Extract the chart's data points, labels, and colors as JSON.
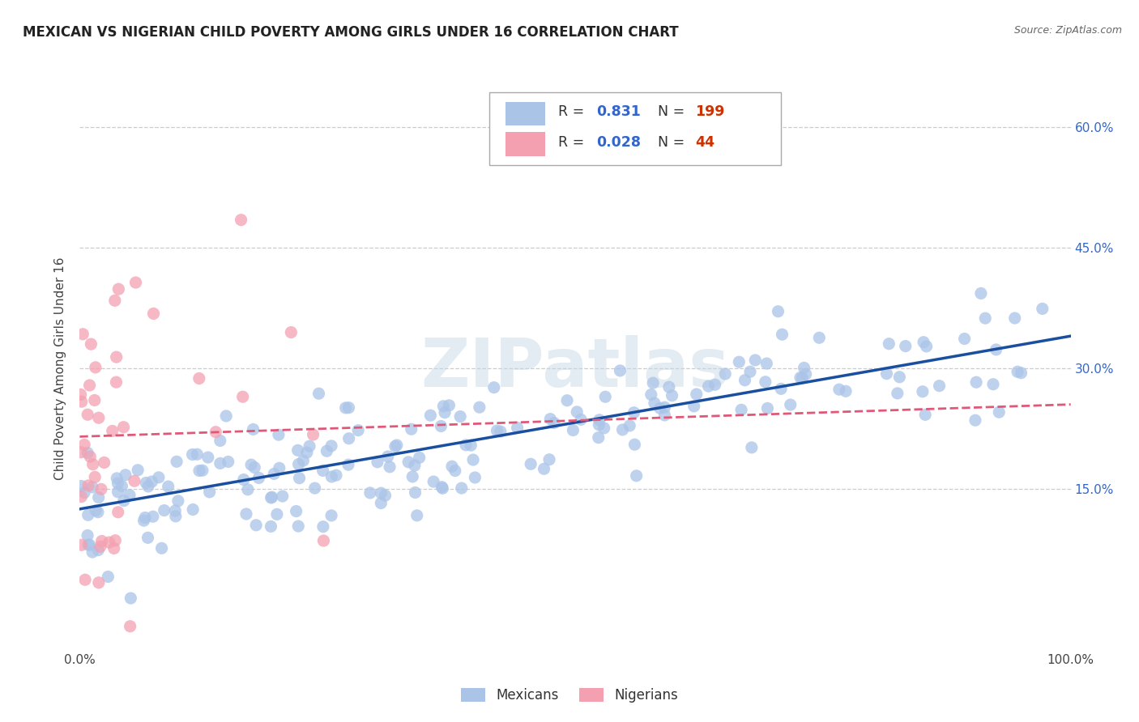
{
  "title": "MEXICAN VS NIGERIAN CHILD POVERTY AMONG GIRLS UNDER 16 CORRELATION CHART",
  "source": "Source: ZipAtlas.com",
  "ylabel": "Child Poverty Among Girls Under 16",
  "xlim": [
    0.0,
    1.0
  ],
  "ylim": [
    -0.05,
    0.65
  ],
  "x_ticks": [
    0.0,
    0.1,
    0.2,
    0.3,
    0.4,
    0.5,
    0.6,
    0.7,
    0.8,
    0.9,
    1.0
  ],
  "x_tick_labels": [
    "0.0%",
    "",
    "",
    "",
    "",
    "",
    "",
    "",
    "",
    "",
    "100.0%"
  ],
  "y_ticks": [
    0.15,
    0.3,
    0.45,
    0.6
  ],
  "y_tick_labels": [
    "15.0%",
    "30.0%",
    "45.0%",
    "60.0%"
  ],
  "watermark": "ZIPatlas",
  "legend_r_mexican": "0.831",
  "legend_n_mexican": "199",
  "legend_r_nigerian": "0.028",
  "legend_n_nigerian": "44",
  "mexican_color": "#aac4e8",
  "nigerian_color": "#f4a0b0",
  "mexican_line_color": "#1a4fa0",
  "nigerian_line_color": "#e05878",
  "legend_r_color": "#3366cc",
  "legend_n_color": "#cc3300",
  "title_fontsize": 12,
  "axis_label_fontsize": 11,
  "tick_fontsize": 11,
  "mexican_slope": 0.215,
  "mexican_intercept": 0.125,
  "nigerian_slope": 0.04,
  "nigerian_intercept": 0.215,
  "background_color": "#ffffff",
  "grid_color": "#cccccc"
}
